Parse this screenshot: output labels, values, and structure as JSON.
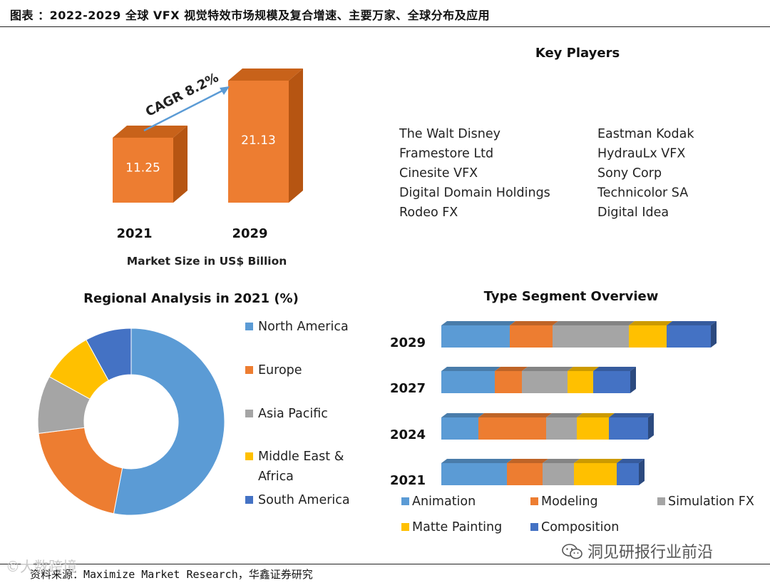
{
  "header": {
    "title": "图表 ：2022-2029 全球 VFX 视觉特效市场规模及复合增速、主要万家、全球分布及应用"
  },
  "footer": {
    "source": "资料来源：Maximize Market Research，华鑫证券研究"
  },
  "watermarks": {
    "left": "©大数跨境",
    "right": "洞见研报行业前沿"
  },
  "colors": {
    "north_america": "#5b9bd5",
    "europe": "#ed7d31",
    "asia_pacific": "#a5a5a5",
    "middle_east_africa": "#ffc000",
    "south_america": "#4472c4",
    "bar_orange": "#ed7d31",
    "bar_orange_side": "#b65512",
    "bar_orange_top": "#c8621a",
    "arrow": "#5b9bd5"
  },
  "chart_data": [
    {
      "type": "bar",
      "categories": [
        "2021",
        "2029"
      ],
      "values": [
        11.25,
        21.13
      ],
      "value_labels": [
        "11.25",
        "21.13"
      ],
      "annotation": "CAGR 8.2%",
      "xlabel": "Market Size in US$ Billion",
      "grid": false
    },
    {
      "type": "table",
      "title": "Key Players",
      "columns": [
        [
          "The Walt Disney",
          "Framestore Ltd",
          "Cinesite VFX",
          "Digital Domain Holdings",
          "Rodeo FX"
        ],
        [
          "Eastman Kodak",
          "HydrauLx VFX",
          "Sony Corp",
          "Technicolor SA",
          "Digital Idea"
        ]
      ]
    },
    {
      "type": "pie",
      "title": "Regional Analysis in 2021 (%)",
      "labels": [
        "North America",
        "Europe",
        "Asia Pacific",
        "Middle East & Africa",
        "South America"
      ],
      "values": [
        53,
        20,
        10,
        9,
        8
      ],
      "legend": "right"
    },
    {
      "type": "bar",
      "orientation": "horizontal",
      "stacked": true,
      "title": "Type Segment Overview",
      "categories": [
        "2029",
        "2027",
        "2024",
        "2021"
      ],
      "series": [
        {
          "name": "Animation",
          "values": [
            96,
            75,
            52,
            92
          ]
        },
        {
          "name": "Modeling",
          "values": [
            60,
            38,
            95,
            50
          ]
        },
        {
          "name": "Simulation FX",
          "values": [
            107,
            64,
            43,
            44
          ]
        },
        {
          "name": "Matte Painting",
          "values": [
            53,
            36,
            45,
            60
          ]
        },
        {
          "name": "Composition",
          "values": [
            62,
            52,
            55,
            31
          ]
        }
      ],
      "legend": "bottom",
      "grid": false
    }
  ]
}
